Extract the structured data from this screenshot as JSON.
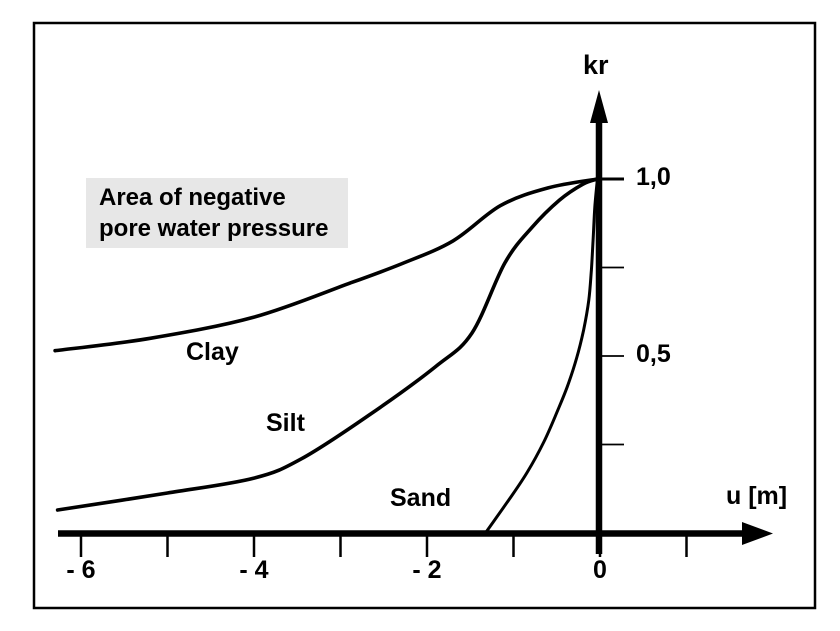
{
  "figure": {
    "colors": {
      "ink": "#000000",
      "background": "#ffffff",
      "annotation_bg": "#e7e7e7"
    },
    "annotation": {
      "line1": "Area of negative",
      "line2": "pore water pressure"
    }
  },
  "chart_data": {
    "type": "line",
    "title": "",
    "xlabel": "u [m]",
    "ylabel": "kr",
    "xlim": [
      -6.6,
      2.0
    ],
    "ylim": [
      0,
      1.25
    ],
    "grid": false,
    "legend": "none",
    "annotation": "Area of negative pore water pressure",
    "x_ticks": [
      {
        "value": -6,
        "label": "- 6"
      },
      {
        "value": -5,
        "label": ""
      },
      {
        "value": -4,
        "label": "- 4"
      },
      {
        "value": -3,
        "label": ""
      },
      {
        "value": -2,
        "label": "- 2"
      },
      {
        "value": -1,
        "label": ""
      },
      {
        "value": 0,
        "label": "0"
      },
      {
        "value": 1,
        "label": ""
      }
    ],
    "y_ticks": [
      {
        "value": 0.25,
        "label": ""
      },
      {
        "value": 0.5,
        "label": "0,5"
      },
      {
        "value": 0.75,
        "label": ""
      },
      {
        "value": 1.0,
        "label": "1,0"
      }
    ],
    "series": [
      {
        "name": "Clay",
        "points": [
          [
            -6.3,
            0.515
          ],
          [
            -5.2,
            0.55
          ],
          [
            -4.0,
            0.61
          ],
          [
            -2.9,
            0.705
          ],
          [
            -2.3,
            0.76
          ],
          [
            -1.7,
            0.825
          ],
          [
            -1.15,
            0.925
          ],
          [
            -0.6,
            0.975
          ],
          [
            -0.03,
            1.0
          ]
        ]
      },
      {
        "name": "Silt",
        "points": [
          [
            -6.27,
            0.065
          ],
          [
            -5.0,
            0.113
          ],
          [
            -4.0,
            0.155
          ],
          [
            -3.45,
            0.21
          ],
          [
            -2.67,
            0.333
          ],
          [
            -1.9,
            0.47
          ],
          [
            -1.48,
            0.565
          ],
          [
            -1.1,
            0.763
          ],
          [
            -0.78,
            0.865
          ],
          [
            -0.47,
            0.94
          ],
          [
            -0.2,
            0.985
          ],
          [
            -0.03,
            1.0
          ]
        ]
      },
      {
        "name": "Sand",
        "points": [
          [
            -1.31,
            0.005
          ],
          [
            -1.05,
            0.095
          ],
          [
            -0.84,
            0.172
          ],
          [
            -0.65,
            0.257
          ],
          [
            -0.5,
            0.34
          ],
          [
            -0.38,
            0.412
          ],
          [
            -0.27,
            0.494
          ],
          [
            -0.19,
            0.573
          ],
          [
            -0.13,
            0.658
          ],
          [
            -0.1,
            0.743
          ],
          [
            -0.08,
            0.828
          ],
          [
            -0.06,
            0.92
          ],
          [
            -0.03,
            1.0
          ]
        ]
      }
    ]
  }
}
